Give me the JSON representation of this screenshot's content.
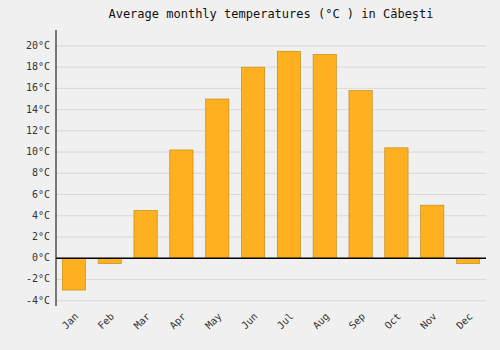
{
  "chart_data": {
    "type": "bar",
    "title": "Average monthly temperatures (°C ) in Căbeşti",
    "categories": [
      "Jan",
      "Feb",
      "Mar",
      "Apr",
      "May",
      "Jun",
      "Jul",
      "Aug",
      "Sep",
      "Oct",
      "Nov",
      "Dec"
    ],
    "values": [
      -3.0,
      -0.5,
      4.5,
      10.2,
      15.0,
      18.0,
      19.5,
      19.2,
      15.8,
      10.4,
      5.0,
      -0.5
    ],
    "color": "#FFB020",
    "ylim": [
      -4.5,
      21.5
    ],
    "yticks": [
      {
        "value": -4,
        "label": "-4°C"
      },
      {
        "value": -2,
        "label": "-2°C"
      },
      {
        "value": 0,
        "label": "0°C"
      },
      {
        "value": 2,
        "label": "2°C"
      },
      {
        "value": 4,
        "label": "4°C"
      },
      {
        "value": 6,
        "label": "6°C"
      },
      {
        "value": 8,
        "label": "8°C"
      },
      {
        "value": 10,
        "label": "10°C"
      },
      {
        "value": 12,
        "label": "12°C"
      },
      {
        "value": 14,
        "label": "14°C"
      },
      {
        "value": 16,
        "label": "16°C"
      },
      {
        "value": 18,
        "label": "18°C"
      },
      {
        "value": 20,
        "label": "20°C"
      }
    ],
    "grid": true
  }
}
